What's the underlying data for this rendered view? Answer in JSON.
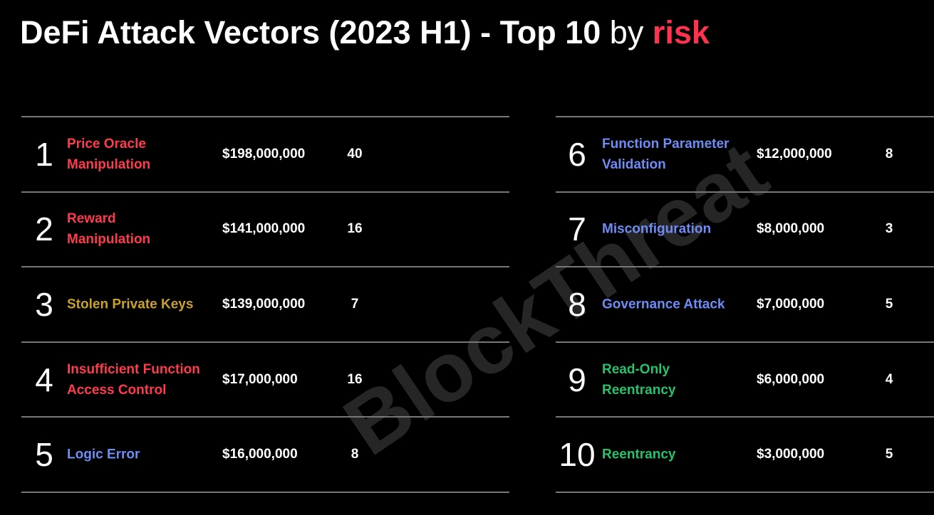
{
  "header": {
    "title": "DeFi Attack Vectors (2023 H1) - Top 10",
    "by": "by",
    "highlight": "risk",
    "highlight_color": "#ff3350"
  },
  "watermark": "BlockThreat",
  "table": {
    "rows": [
      {
        "rank": "1",
        "name": "Price Oracle\nManipulation",
        "amount": "$198,000,000",
        "count": "40",
        "color": "#ff3b4e"
      },
      {
        "rank": "2",
        "name": "Reward\nManipulation",
        "amount": "$141,000,000",
        "count": "16",
        "color": "#ff3b4e"
      },
      {
        "rank": "3",
        "name": "Stolen Private Keys",
        "amount": "$139,000,000",
        "count": "7",
        "color": "#c9a227"
      },
      {
        "rank": "4",
        "name": "Insufficient Function\nAccess Control",
        "amount": "$17,000,000",
        "count": "16",
        "color": "#ff3b4e"
      },
      {
        "rank": "5",
        "name": "Logic Error",
        "amount": "$16,000,000",
        "count": "8",
        "color": "#6f8cf5"
      },
      {
        "rank": "6",
        "name": "Function Parameter\nValidation",
        "amount": "$12,000,000",
        "count": "8",
        "color": "#6f8cf5"
      },
      {
        "rank": "7",
        "name": "Misconfiguration",
        "amount": "$8,000,000",
        "count": "3",
        "color": "#6f8cf5"
      },
      {
        "rank": "8",
        "name": "Governance Attack",
        "amount": "$7,000,000",
        "count": "5",
        "color": "#6f8cf5"
      },
      {
        "rank": "9",
        "name": "Read-Only\nReentrancy",
        "amount": "$6,000,000",
        "count": "4",
        "color": "#27c26c"
      },
      {
        "rank": "10",
        "name": "Reentrancy",
        "amount": "$3,000,000",
        "count": "5",
        "color": "#27c26c"
      }
    ]
  }
}
